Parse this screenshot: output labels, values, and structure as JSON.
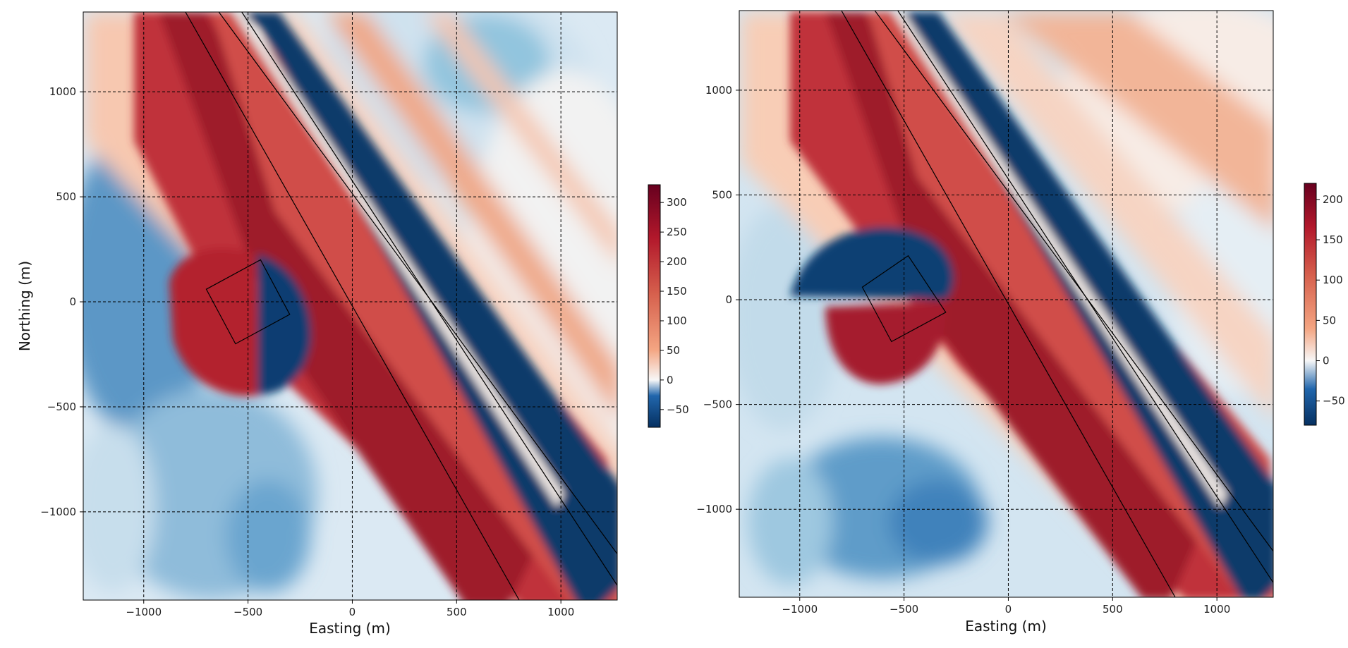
{
  "chart_data": [
    {
      "type": "heatmap",
      "title": "",
      "xlabel": "Easting (m)",
      "ylabel": "Northing (m)",
      "xlim": [
        -1290,
        1270
      ],
      "ylim": [
        -1420,
        1380
      ],
      "xticks": [
        -1000,
        -500,
        0,
        500,
        1000
      ],
      "yticks": [
        -1000,
        -500,
        0,
        500,
        1000
      ],
      "x_tick_labels": [
        "−1000",
        "−500",
        "0",
        "500",
        "1000"
      ],
      "y_tick_labels": [
        "−1000",
        "−500",
        "0",
        "500",
        "1000"
      ],
      "grid": true,
      "colormap": "RdBu_r",
      "color_range": [
        -80,
        330
      ],
      "colorbar_ticks": [
        300,
        250,
        200,
        150,
        100,
        50,
        0,
        -50
      ],
      "colorbar_tick_labels": [
        "300",
        "250",
        "200",
        "150",
        "100",
        "50",
        "0",
        "−50"
      ],
      "structures": {
        "block": [
          [
            -700,
            60
          ],
          [
            -440,
            200
          ],
          [
            -300,
            -60
          ],
          [
            -560,
            -200
          ]
        ],
        "lines": [
          [
            [
              -800,
              1380
            ],
            [
              800,
              -1420
            ]
          ],
          [
            [
              -640,
              1380
            ],
            [
              1270,
              -1200
            ]
          ],
          [
            [
              -530,
              1380
            ],
            [
              1270,
              -1350
            ]
          ]
        ]
      }
    },
    {
      "type": "heatmap",
      "title": "",
      "xlabel": "Easting (m)",
      "ylabel": "",
      "xlim": [
        -1290,
        1270
      ],
      "ylim": [
        -1420,
        1380
      ],
      "xticks": [
        -1000,
        -500,
        0,
        500,
        1000
      ],
      "yticks": [
        -1000,
        -500,
        0,
        500,
        1000
      ],
      "x_tick_labels": [
        "−1000",
        "−500",
        "0",
        "500",
        "1000"
      ],
      "y_tick_labels": [
        "−1000",
        "−500",
        "0",
        "500",
        "1000"
      ],
      "grid": true,
      "colormap": "RdBu_r",
      "color_range": [
        -80,
        220
      ],
      "colorbar_ticks": [
        200,
        150,
        100,
        50,
        0,
        -50
      ],
      "colorbar_tick_labels": [
        "200",
        "150",
        "100",
        "50",
        "0",
        "−50"
      ],
      "structures": {
        "block": [
          [
            -700,
            60
          ],
          [
            -480,
            210
          ],
          [
            -300,
            -60
          ],
          [
            -560,
            -200
          ]
        ],
        "lines": [
          [
            [
              -800,
              1380
            ],
            [
              800,
              -1420
            ]
          ],
          [
            [
              -640,
              1380
            ],
            [
              1270,
              -1200
            ]
          ],
          [
            [
              -530,
              1380
            ],
            [
              1270,
              -1350
            ]
          ]
        ]
      }
    }
  ]
}
